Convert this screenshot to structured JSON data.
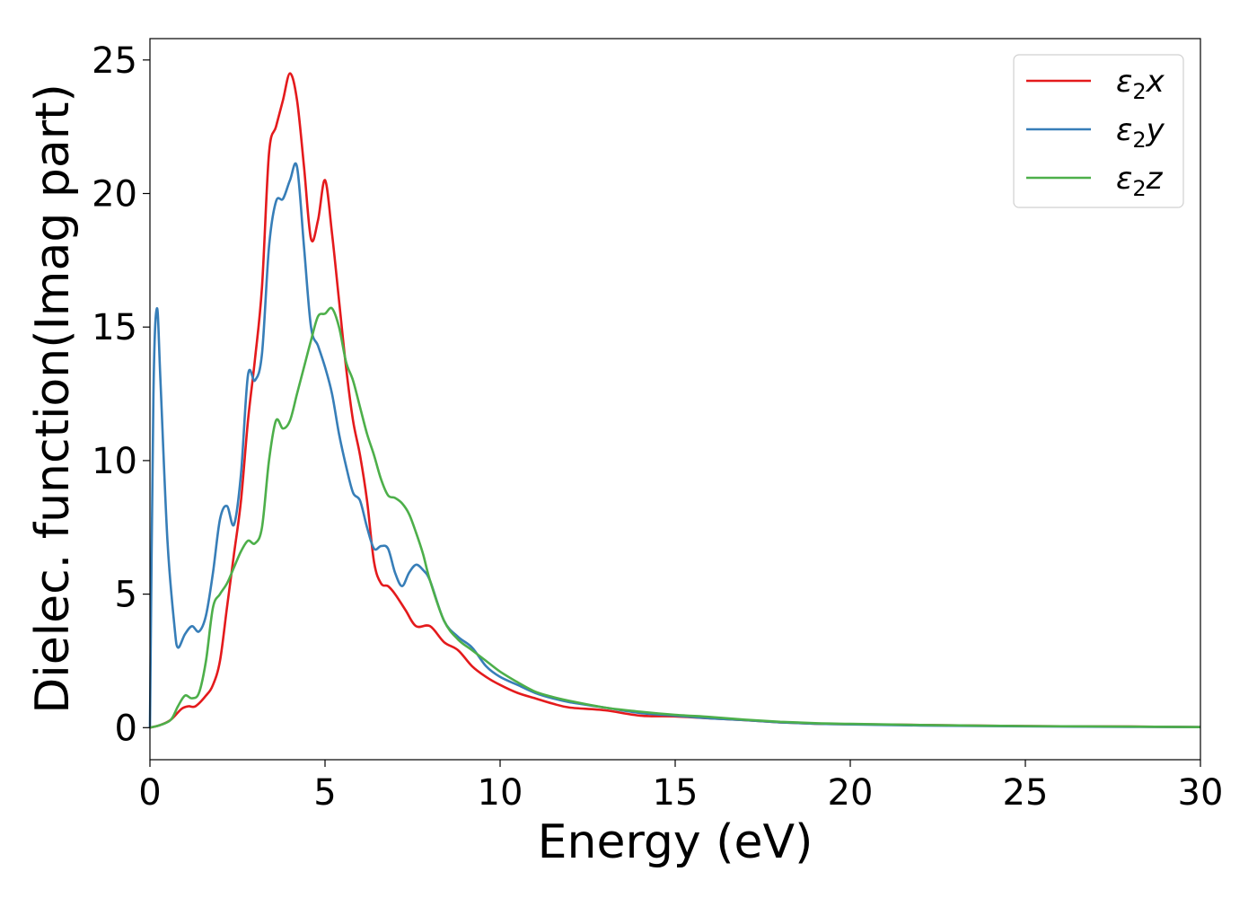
{
  "chart_data": {
    "type": "line",
    "title": "",
    "xlabel": "Energy (eV)",
    "ylabel": "Dielec. function(Imag part)",
    "xlim": [
      0,
      30
    ],
    "ylim": [
      -1.2,
      25.8
    ],
    "xticks": [
      0,
      5,
      10,
      15,
      20,
      25,
      30
    ],
    "yticks": [
      0,
      5,
      10,
      15,
      20,
      25
    ],
    "grid": false,
    "legend_position": "top-right",
    "series": [
      {
        "name": "ε₂x",
        "legend_base": "ε",
        "legend_sub": "2",
        "legend_suffix": "x",
        "color": "#e41a1c",
        "points": [
          [
            0,
            0
          ],
          [
            0.3,
            0.1
          ],
          [
            0.6,
            0.3
          ],
          [
            0.9,
            0.7
          ],
          [
            1.1,
            0.8
          ],
          [
            1.3,
            0.8
          ],
          [
            1.6,
            1.2
          ],
          [
            1.8,
            1.6
          ],
          [
            2.0,
            2.5
          ],
          [
            2.2,
            4.5
          ],
          [
            2.4,
            6.5
          ],
          [
            2.6,
            8.5
          ],
          [
            2.8,
            11.5
          ],
          [
            3.0,
            13.8
          ],
          [
            3.2,
            16.5
          ],
          [
            3.4,
            21.5
          ],
          [
            3.6,
            22.5
          ],
          [
            3.8,
            23.5
          ],
          [
            4.0,
            24.5
          ],
          [
            4.2,
            23.5
          ],
          [
            4.4,
            21.0
          ],
          [
            4.6,
            18.3
          ],
          [
            4.8,
            19.0
          ],
          [
            5.0,
            20.5
          ],
          [
            5.2,
            18.5
          ],
          [
            5.4,
            16.0
          ],
          [
            5.6,
            13.5
          ],
          [
            5.8,
            11.5
          ],
          [
            6.0,
            10.2
          ],
          [
            6.2,
            8.5
          ],
          [
            6.4,
            6.2
          ],
          [
            6.6,
            5.4
          ],
          [
            6.8,
            5.3
          ],
          [
            7.0,
            5.0
          ],
          [
            7.3,
            4.4
          ],
          [
            7.6,
            3.8
          ],
          [
            8.0,
            3.8
          ],
          [
            8.4,
            3.2
          ],
          [
            8.8,
            2.9
          ],
          [
            9.2,
            2.3
          ],
          [
            9.6,
            1.9
          ],
          [
            10.0,
            1.6
          ],
          [
            10.5,
            1.3
          ],
          [
            11.0,
            1.1
          ],
          [
            11.5,
            0.9
          ],
          [
            12.0,
            0.75
          ],
          [
            13.0,
            0.65
          ],
          [
            14.0,
            0.45
          ],
          [
            15.0,
            0.42
          ],
          [
            16.0,
            0.35
          ],
          [
            17.0,
            0.28
          ],
          [
            18.0,
            0.2
          ],
          [
            19.0,
            0.15
          ],
          [
            20.0,
            0.13
          ],
          [
            22.0,
            0.1
          ],
          [
            25.0,
            0.06
          ],
          [
            28.0,
            0.04
          ],
          [
            30.0,
            0.02
          ]
        ]
      },
      {
        "name": "ε₂y",
        "legend_base": "ε",
        "legend_sub": "2",
        "legend_suffix": "y",
        "color": "#377eb8",
        "points": [
          [
            0,
            0
          ],
          [
            0.1,
            12.5
          ],
          [
            0.2,
            15.7
          ],
          [
            0.3,
            13.0
          ],
          [
            0.5,
            7.0
          ],
          [
            0.7,
            3.8
          ],
          [
            0.8,
            3.0
          ],
          [
            1.0,
            3.5
          ],
          [
            1.2,
            3.8
          ],
          [
            1.4,
            3.6
          ],
          [
            1.6,
            4.2
          ],
          [
            1.8,
            5.8
          ],
          [
            2.0,
            7.8
          ],
          [
            2.2,
            8.3
          ],
          [
            2.4,
            7.6
          ],
          [
            2.6,
            9.5
          ],
          [
            2.8,
            13.2
          ],
          [
            3.0,
            13.0
          ],
          [
            3.2,
            14.0
          ],
          [
            3.4,
            18.0
          ],
          [
            3.6,
            19.7
          ],
          [
            3.8,
            19.8
          ],
          [
            4.0,
            20.5
          ],
          [
            4.2,
            21.0
          ],
          [
            4.4,
            18.0
          ],
          [
            4.6,
            15.0
          ],
          [
            4.8,
            14.3
          ],
          [
            5.0,
            13.5
          ],
          [
            5.2,
            12.5
          ],
          [
            5.4,
            11.0
          ],
          [
            5.6,
            9.8
          ],
          [
            5.8,
            8.8
          ],
          [
            6.0,
            8.5
          ],
          [
            6.2,
            7.5
          ],
          [
            6.4,
            6.7
          ],
          [
            6.6,
            6.8
          ],
          [
            6.8,
            6.7
          ],
          [
            7.0,
            5.8
          ],
          [
            7.2,
            5.3
          ],
          [
            7.4,
            5.8
          ],
          [
            7.6,
            6.1
          ],
          [
            7.8,
            5.9
          ],
          [
            8.0,
            5.5
          ],
          [
            8.4,
            4.0
          ],
          [
            8.8,
            3.4
          ],
          [
            9.2,
            3.0
          ],
          [
            9.6,
            2.3
          ],
          [
            10.0,
            1.9
          ],
          [
            10.5,
            1.6
          ],
          [
            11.0,
            1.3
          ],
          [
            11.5,
            1.1
          ],
          [
            12.0,
            0.95
          ],
          [
            13.0,
            0.75
          ],
          [
            14.0,
            0.55
          ],
          [
            15.0,
            0.45
          ],
          [
            16.0,
            0.35
          ],
          [
            17.0,
            0.28
          ],
          [
            18.0,
            0.2
          ],
          [
            19.0,
            0.15
          ],
          [
            20.0,
            0.12
          ],
          [
            22.0,
            0.08
          ],
          [
            25.0,
            0.05
          ],
          [
            28.0,
            0.03
          ],
          [
            30.0,
            0.02
          ]
        ]
      },
      {
        "name": "ε₂z",
        "legend_base": "ε",
        "legend_sub": "2",
        "legend_suffix": "z",
        "color": "#4daf4a",
        "points": [
          [
            0,
            0
          ],
          [
            0.3,
            0.1
          ],
          [
            0.6,
            0.3
          ],
          [
            0.8,
            0.8
          ],
          [
            1.0,
            1.2
          ],
          [
            1.2,
            1.1
          ],
          [
            1.4,
            1.3
          ],
          [
            1.6,
            2.5
          ],
          [
            1.8,
            4.5
          ],
          [
            2.0,
            5.0
          ],
          [
            2.2,
            5.4
          ],
          [
            2.4,
            6.0
          ],
          [
            2.6,
            6.6
          ],
          [
            2.8,
            7.0
          ],
          [
            3.0,
            6.9
          ],
          [
            3.2,
            7.5
          ],
          [
            3.4,
            10.0
          ],
          [
            3.6,
            11.5
          ],
          [
            3.8,
            11.2
          ],
          [
            4.0,
            11.5
          ],
          [
            4.2,
            12.5
          ],
          [
            4.4,
            13.5
          ],
          [
            4.6,
            14.5
          ],
          [
            4.8,
            15.4
          ],
          [
            5.0,
            15.5
          ],
          [
            5.2,
            15.7
          ],
          [
            5.4,
            15.0
          ],
          [
            5.6,
            13.7
          ],
          [
            5.8,
            13.0
          ],
          [
            6.0,
            12.0
          ],
          [
            6.2,
            11.0
          ],
          [
            6.4,
            10.2
          ],
          [
            6.6,
            9.3
          ],
          [
            6.8,
            8.7
          ],
          [
            7.0,
            8.6
          ],
          [
            7.2,
            8.4
          ],
          [
            7.4,
            8.0
          ],
          [
            7.6,
            7.3
          ],
          [
            7.8,
            6.5
          ],
          [
            8.0,
            5.5
          ],
          [
            8.4,
            4.0
          ],
          [
            8.8,
            3.3
          ],
          [
            9.2,
            2.9
          ],
          [
            9.6,
            2.5
          ],
          [
            10.0,
            2.1
          ],
          [
            10.5,
            1.7
          ],
          [
            11.0,
            1.35
          ],
          [
            11.5,
            1.15
          ],
          [
            12.0,
            1.0
          ],
          [
            13.0,
            0.75
          ],
          [
            14.0,
            0.6
          ],
          [
            15.0,
            0.48
          ],
          [
            16.0,
            0.4
          ],
          [
            17.0,
            0.3
          ],
          [
            18.0,
            0.22
          ],
          [
            19.0,
            0.17
          ],
          [
            20.0,
            0.14
          ],
          [
            22.0,
            0.1
          ],
          [
            25.0,
            0.06
          ],
          [
            28.0,
            0.04
          ],
          [
            30.0,
            0.02
          ]
        ]
      }
    ]
  }
}
